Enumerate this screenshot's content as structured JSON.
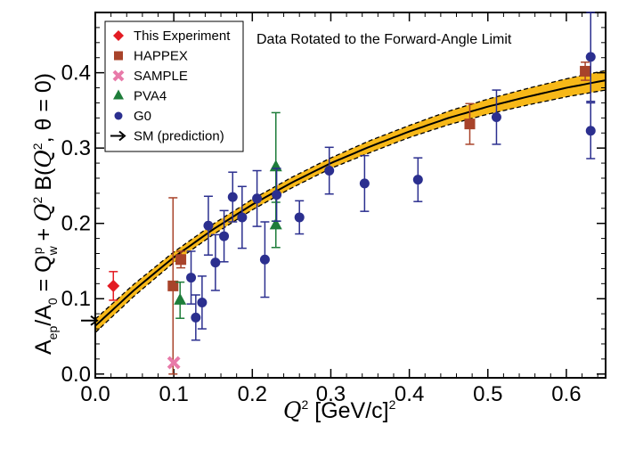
{
  "chart_data": {
    "type": "scatter",
    "title": "",
    "annotation": "Data Rotated to the Forward-Angle Limit",
    "xlabel": "Q² [GeV/c]²",
    "xlabel_parts": {
      "q": "Q",
      "sup": "2",
      "rest": " [GeV/c]",
      "sup2": "2"
    },
    "ylabel": "A_ep/A_0 = Q_w^p + Q² B(Q², θ = 0)",
    "ylabel_parts": {
      "a": "A",
      "ep": "ep",
      "slash_a": "/A",
      "zero": "0",
      "eq_q": " = Q",
      "w": "w",
      "p": "p",
      "plus": " + ",
      "q": "Q",
      "two": "2",
      "b": " B(",
      "q2": "Q",
      "two2": "2",
      "tail": ", θ = 0)"
    },
    "xlim": [
      0.0,
      0.65
    ],
    "ylim": [
      -0.005,
      0.48
    ],
    "x_ticks": [
      0.0,
      0.1,
      0.2,
      0.3,
      0.4,
      0.5,
      0.6
    ],
    "x_tick_labels": [
      "0.0",
      "0.1",
      "0.2",
      "0.3",
      "0.4",
      "0.5",
      "0.6"
    ],
    "y_ticks": [
      0.0,
      0.1,
      0.2,
      0.3,
      0.4
    ],
    "y_tick_labels": [
      "0.0",
      "0.1",
      "0.2",
      "0.3",
      "0.4"
    ],
    "legend_position": "top-left",
    "legend": [
      {
        "name": "This Experiment",
        "marker": "diamond",
        "color": "#e31b23"
      },
      {
        "name": "HAPPEX",
        "marker": "square",
        "color": "#a8432a"
      },
      {
        "name": "SAMPLE",
        "marker": "cross",
        "color": "#e87aa9"
      },
      {
        "name": "PVA4",
        "marker": "triangle",
        "color": "#1e7d3a"
      },
      {
        "name": "G0",
        "marker": "circle",
        "color": "#2b2f8f"
      },
      {
        "name": "SM (prediction)",
        "marker": "arrow",
        "color": "#000000"
      }
    ],
    "fit": {
      "x": [
        0.0,
        0.05,
        0.1,
        0.15,
        0.2,
        0.25,
        0.3,
        0.35,
        0.4,
        0.45,
        0.5,
        0.55,
        0.6,
        0.65
      ],
      "y": [
        0.064,
        0.112,
        0.155,
        0.192,
        0.225,
        0.254,
        0.28,
        0.302,
        0.322,
        0.34,
        0.355,
        0.368,
        0.38,
        0.39
      ],
      "band_halfwidth": [
        0.009,
        0.008,
        0.007,
        0.007,
        0.007,
        0.007,
        0.007,
        0.008,
        0.008,
        0.009,
        0.01,
        0.011,
        0.012,
        0.013
      ],
      "line_color": "#000000",
      "band_color": "#f7b818"
    },
    "sm_prediction": {
      "y": 0.071
    },
    "series": [
      {
        "name": "This Experiment",
        "marker": "diamond",
        "color": "#e31b23",
        "points": [
          {
            "x": 0.023,
            "y": 0.117,
            "err": 0.019
          }
        ]
      },
      {
        "name": "HAPPEX",
        "marker": "square",
        "color": "#a8432a",
        "points": [
          {
            "x": 0.099,
            "y": 0.117,
            "err": 0.117
          },
          {
            "x": 0.109,
            "y": 0.152,
            "err": 0.011
          },
          {
            "x": 0.477,
            "y": 0.332,
            "err": 0.027
          },
          {
            "x": 0.624,
            "y": 0.402,
            "err": 0.012
          }
        ]
      },
      {
        "name": "SAMPLE",
        "marker": "cross",
        "color": "#e87aa9",
        "points": [
          {
            "x": 0.1,
            "y": 0.015,
            "err": 0.0
          }
        ]
      },
      {
        "name": "PVA4",
        "marker": "triangle",
        "color": "#1e7d3a",
        "points": [
          {
            "x": 0.108,
            "y": 0.098,
            "err": 0.024
          },
          {
            "x": 0.23,
            "y": 0.275,
            "err": 0.072
          },
          {
            "x": 0.23,
            "y": 0.198,
            "err": 0.03
          }
        ]
      },
      {
        "name": "G0",
        "marker": "circle",
        "color": "#2b2f8f",
        "points": [
          {
            "x": 0.122,
            "y": 0.128,
            "err": 0.035
          },
          {
            "x": 0.128,
            "y": 0.075,
            "err": 0.03
          },
          {
            "x": 0.136,
            "y": 0.095,
            "err": 0.035
          },
          {
            "x": 0.144,
            "y": 0.197,
            "err": 0.039
          },
          {
            "x": 0.153,
            "y": 0.148,
            "err": 0.037
          },
          {
            "x": 0.164,
            "y": 0.183,
            "err": 0.034
          },
          {
            "x": 0.175,
            "y": 0.235,
            "err": 0.033
          },
          {
            "x": 0.187,
            "y": 0.208,
            "err": 0.041
          },
          {
            "x": 0.206,
            "y": 0.233,
            "err": 0.037
          },
          {
            "x": 0.216,
            "y": 0.152,
            "err": 0.05
          },
          {
            "x": 0.231,
            "y": 0.238,
            "err": 0.035
          },
          {
            "x": 0.26,
            "y": 0.208,
            "err": 0.022
          },
          {
            "x": 0.298,
            "y": 0.27,
            "err": 0.031
          },
          {
            "x": 0.343,
            "y": 0.253,
            "err": 0.037
          },
          {
            "x": 0.411,
            "y": 0.258,
            "err": 0.029
          },
          {
            "x": 0.511,
            "y": 0.341,
            "err": 0.036
          },
          {
            "x": 0.631,
            "y": 0.421,
            "err": 0.059
          },
          {
            "x": 0.631,
            "y": 0.323,
            "err": 0.037
          }
        ]
      }
    ]
  }
}
